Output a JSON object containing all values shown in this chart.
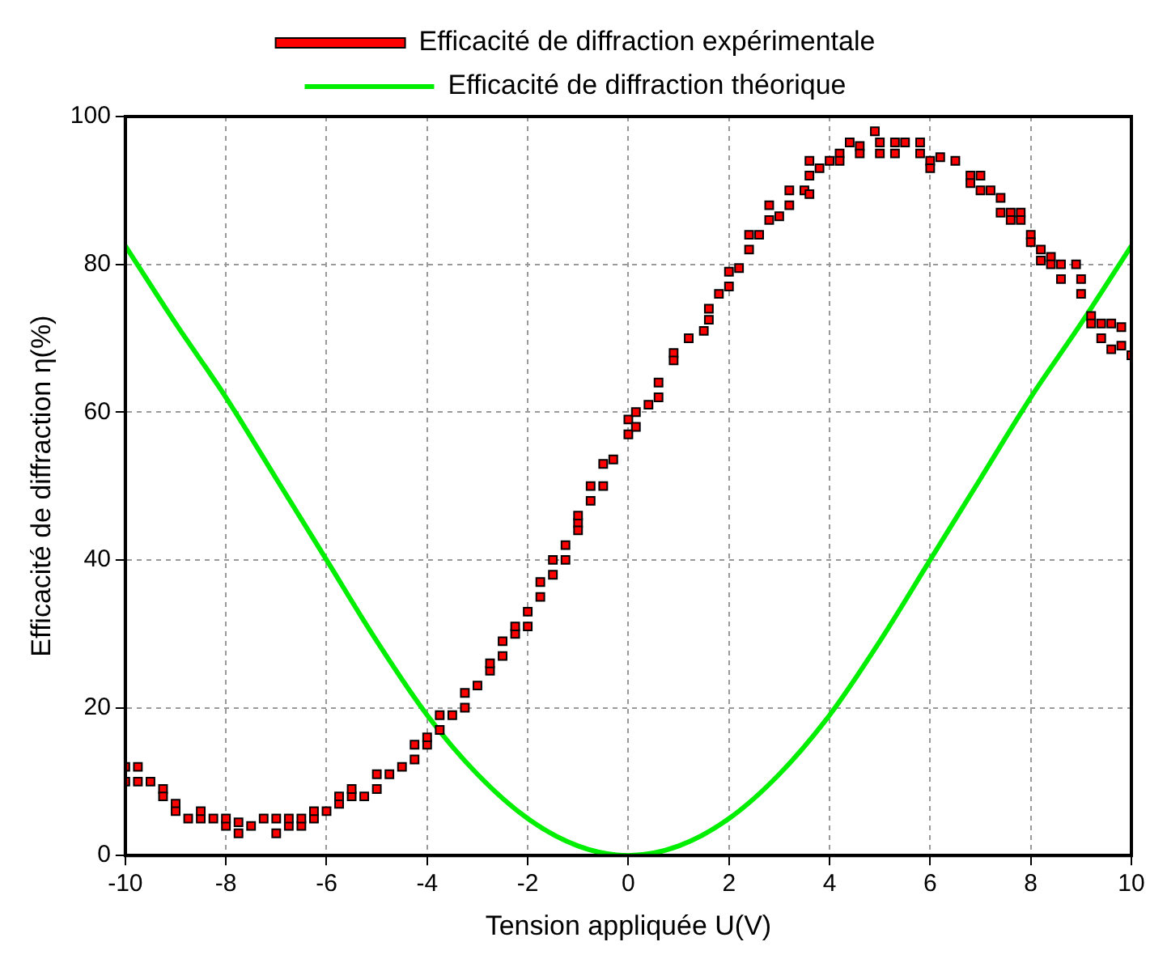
{
  "chart_data": {
    "type": "scatter",
    "xlabel": "Tension appliquée U(V)",
    "ylabel": "Efficacité de diffraction η(%)",
    "xlim": [
      -10,
      10
    ],
    "xticks": [
      -10,
      -8,
      -6,
      -4,
      -2,
      0,
      2,
      4,
      6,
      8,
      10
    ],
    "ylim": [
      0,
      100
    ],
    "yticks": [
      0,
      20,
      40,
      60,
      80,
      100
    ],
    "grid": true,
    "legend": "top",
    "marker": "square",
    "series": [
      {
        "name": "Efficacité de diffraction expérimentale",
        "color": "#ff0000",
        "x": [
          -10,
          -10,
          -9.75,
          -9.75,
          -9.5,
          -9.25,
          -9.25,
          -9,
          -9,
          -8.75,
          -8.5,
          -8.5,
          -8.25,
          -8,
          -8,
          -7.75,
          -7.75,
          -7.5,
          -7.25,
          -7,
          -7,
          -6.75,
          -6.75,
          -6.5,
          -6.5,
          -6.25,
          -6.25,
          -6,
          -5.75,
          -5.75,
          -5.5,
          -5.5,
          -5.25,
          -5,
          -5,
          -4.75,
          -4.5,
          -4.25,
          -4.25,
          -4,
          -4,
          -3.75,
          -3.75,
          -3.5,
          -3.25,
          -3.25,
          -3,
          -2.75,
          -2.75,
          -2.5,
          -2.5,
          -2.25,
          -2.25,
          -2,
          -2,
          -1.75,
          -1.75,
          -1.5,
          -1.5,
          -1.25,
          -1.25,
          -1,
          -1,
          -1,
          -0.75,
          -0.75,
          -0.5,
          -0.5,
          -0.3,
          0,
          0,
          0.15,
          0.15,
          0.4,
          0.6,
          0.6,
          0.9,
          0.9,
          1.2,
          1.5,
          1.6,
          1.6,
          1.8,
          2,
          2,
          2.2,
          2.4,
          2.4,
          2.6,
          2.8,
          2.8,
          3,
          3.2,
          3.2,
          3.5,
          3.6,
          3.6,
          3.6,
          3.8,
          4,
          4.2,
          4.2,
          4.4,
          4.6,
          4.6,
          4.9,
          5,
          5,
          5.3,
          5.3,
          5.5,
          5.8,
          5.8,
          6,
          6,
          6.2,
          6.5,
          6.8,
          6.8,
          7,
          7,
          7.2,
          7.4,
          7.4,
          7.6,
          7.6,
          7.8,
          7.8,
          8,
          8,
          8.2,
          8.2,
          8.4,
          8.4,
          8.6,
          8.6,
          8.9,
          9,
          9,
          9.2,
          9.2,
          9.4,
          9.4,
          9.6,
          9.6,
          9.8,
          9.8,
          10
        ],
        "values": [
          12,
          10,
          12,
          10,
          10,
          9,
          8,
          7,
          6,
          5,
          5,
          6,
          5,
          4,
          5,
          3,
          4.5,
          4,
          5,
          3,
          5,
          4,
          5,
          4,
          5,
          5,
          6,
          6,
          7,
          8,
          8,
          9,
          8,
          9,
          11,
          11,
          12,
          15,
          13,
          15,
          16,
          19,
          17,
          19,
          22,
          20,
          23,
          25,
          26,
          27,
          29,
          30,
          31,
          33,
          31,
          35,
          37,
          38,
          40,
          42,
          40,
          45,
          46,
          44,
          48,
          50,
          53,
          50,
          53.6,
          59,
          57,
          58,
          60,
          61,
          64,
          62,
          68,
          67,
          70,
          71,
          74,
          72.5,
          76,
          79,
          77,
          79.5,
          84,
          82,
          84,
          88,
          86,
          86.5,
          90,
          88,
          90,
          94,
          92,
          89.5,
          93,
          94,
          95,
          94,
          96.5,
          96,
          95,
          98,
          96.5,
          95,
          96.5,
          95,
          96.5,
          96.5,
          95,
          94,
          93,
          94.5,
          94,
          92,
          91,
          92,
          90,
          90,
          89,
          87,
          87,
          86,
          87,
          86,
          84,
          83,
          82,
          80.5,
          81,
          80,
          80,
          78,
          80,
          78,
          76,
          73,
          72,
          72,
          70,
          72,
          68.5,
          71.5,
          69,
          67.7
        ]
      },
      {
        "name": "Efficacité de diffraction théorique",
        "type": "line",
        "color": "#00ee00",
        "marker": "none",
        "line_style": "solid",
        "x": [
          -10,
          -9,
          -8,
          -7,
          -6,
          -5,
          -4,
          -3,
          -2,
          -1,
          0,
          1,
          2,
          3,
          4,
          5,
          6,
          7,
          8,
          9,
          10
        ],
        "values": [
          82.5,
          72,
          62,
          51,
          40,
          29,
          19,
          11,
          5,
          1.3,
          0,
          1.3,
          5,
          11,
          19,
          29,
          40,
          51,
          62,
          72,
          82.5
        ]
      }
    ]
  }
}
